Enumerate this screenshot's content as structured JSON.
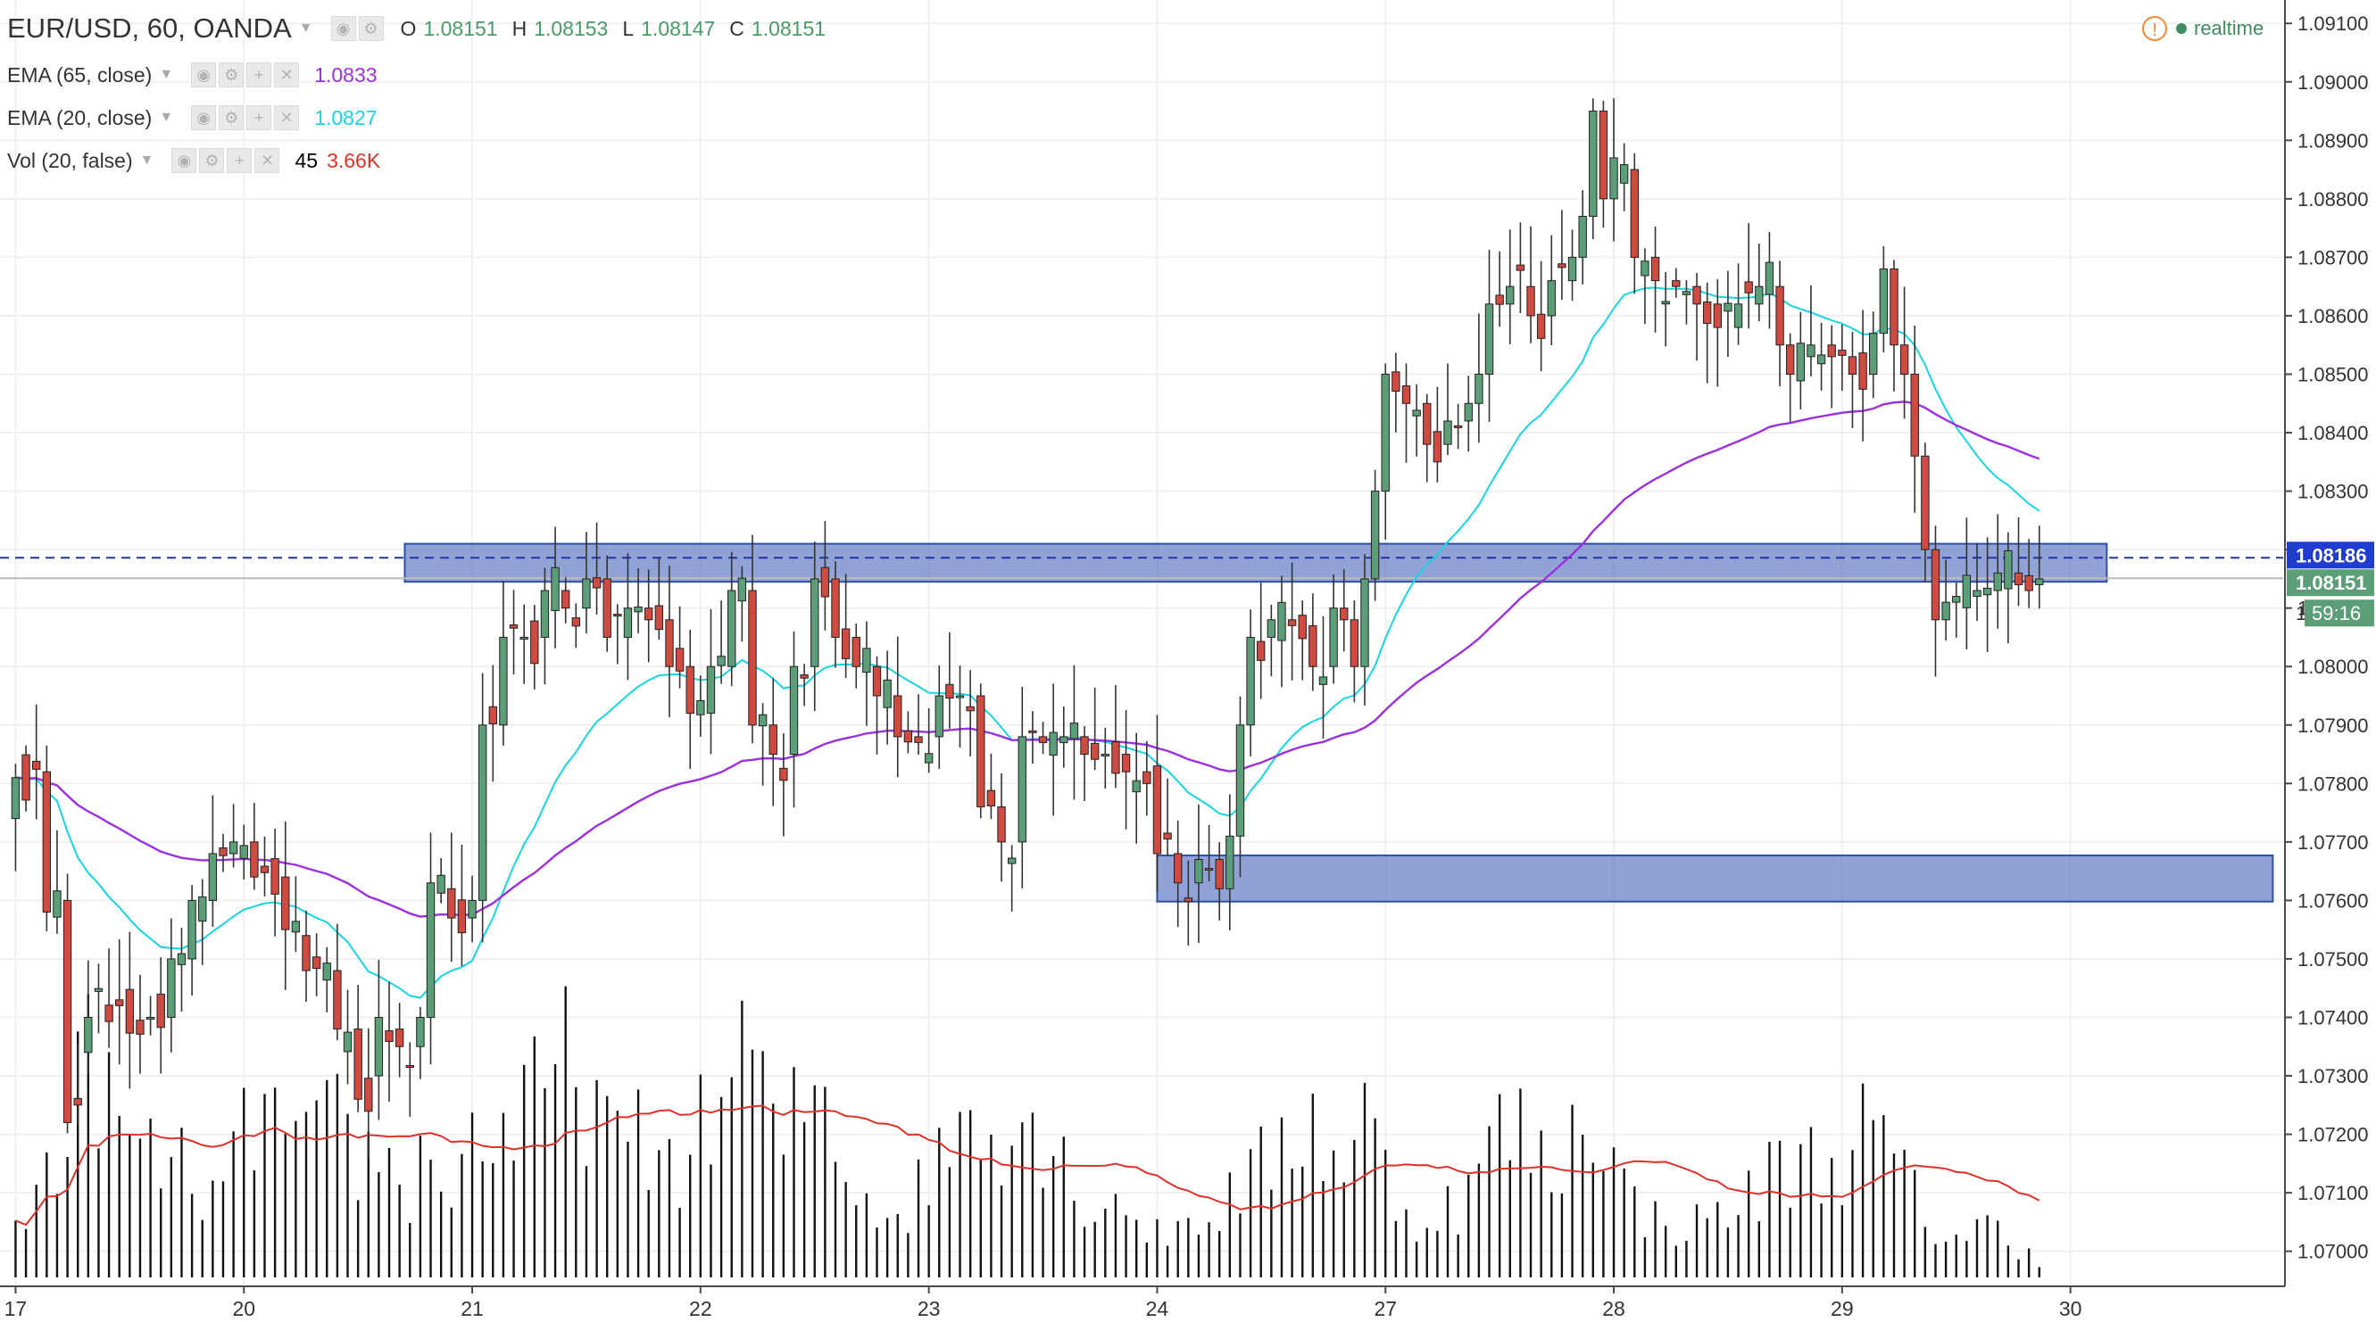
{
  "header": {
    "symbol": "EUR/USD, 60, OANDA",
    "open_label": "O",
    "open": "1.08151",
    "high_label": "H",
    "high": "1.08153",
    "low_label": "L",
    "low": "1.08147",
    "close_label": "C",
    "close": "1.08151",
    "realtime": "realtime"
  },
  "indicators": [
    {
      "name": "EMA (65, close)",
      "value": "1.0833",
      "color": "#9b30e0"
    },
    {
      "name": "EMA (20, close)",
      "value": "1.0827",
      "color": "#18d4e0"
    },
    {
      "name": "Vol (20, false)",
      "value": "45",
      "value2": "3.66K",
      "color": "#e0302a"
    }
  ],
  "icons": [
    "eye-icon",
    "gear-icon",
    "plus-icon",
    "close-icon",
    "warning-icon"
  ],
  "colors": {
    "up": "#5b9e78",
    "down": "#cf4a41",
    "ema65": "#9b30e0",
    "ema20": "#18d4e0",
    "vol_ma": "#e0302a",
    "zone": "#5470c0"
  },
  "price_labels": {
    "level": "1.08186",
    "last": "1.08151",
    "countdown": "59:16",
    "partial": "1."
  },
  "chart_data": {
    "type": "candlestick",
    "timeframe": "60",
    "y_ticks": [
      "1.09100",
      "1.09000",
      "1.08900",
      "1.08800",
      "1.08700",
      "1.08600",
      "1.08500",
      "1.08400",
      "1.08300",
      "1.08200",
      "1.08100",
      "1.08000",
      "1.07900",
      "1.07800",
      "1.07700",
      "1.07600",
      "1.07500",
      "1.07400",
      "1.07300",
      "1.07200",
      "1.07100",
      "1.07000"
    ],
    "y_range": [
      1.0694,
      1.0914
    ],
    "x_ticks": [
      {
        "label": "17",
        "index": 0
      },
      {
        "label": "20",
        "index": 22
      },
      {
        "label": "21",
        "index": 44
      },
      {
        "label": "22",
        "index": 66
      },
      {
        "label": "23",
        "index": 88
      },
      {
        "label": "24",
        "index": 110
      },
      {
        "label": "27",
        "index": 132
      },
      {
        "label": "28",
        "index": 154
      },
      {
        "label": "29",
        "index": 176
      },
      {
        "label": "30",
        "index": 198
      }
    ],
    "x_index_range": [
      -1.5,
      218.5
    ],
    "anchors": [
      [
        0,
        1.0774,
        1.0781
      ],
      [
        3,
        1.0782,
        1.0758
      ],
      [
        5,
        1.076,
        1.0722
      ],
      [
        7,
        1.0734,
        1.074
      ],
      [
        10,
        1.0743,
        1.0742
      ],
      [
        13,
        1.074,
        1.074
      ],
      [
        15,
        1.074,
        1.075
      ],
      [
        17,
        1.075,
        1.076
      ],
      [
        19,
        1.076,
        1.0768
      ],
      [
        21,
        1.0768,
        1.077
      ],
      [
        23,
        1.077,
        1.0764
      ],
      [
        26,
        1.0764,
        1.0755
      ],
      [
        28,
        1.0754,
        1.0748
      ],
      [
        31,
        1.0748,
        1.0738
      ],
      [
        33,
        1.0738,
        1.0726
      ],
      [
        35,
        1.073,
        1.074
      ],
      [
        37,
        1.0738,
        1.0735
      ],
      [
        39,
        1.0735,
        1.074
      ],
      [
        40,
        1.074,
        1.0763
      ],
      [
        42,
        1.0762,
        1.0757
      ],
      [
        44,
        1.0757,
        1.076
      ],
      [
        45,
        1.076,
        1.079
      ],
      [
        47,
        1.079,
        1.0805
      ],
      [
        49,
        1.0805,
        1.0805
      ],
      [
        51,
        1.0805,
        1.0813
      ],
      [
        53,
        1.0813,
        1.081
      ],
      [
        55,
        1.081,
        1.0815
      ],
      [
        57,
        1.0815,
        1.0805
      ],
      [
        59,
        1.0805,
        1.081
      ],
      [
        61,
        1.081,
        1.0808
      ],
      [
        63,
        1.0808,
        1.08
      ],
      [
        65,
        1.08,
        1.0792
      ],
      [
        67,
        1.0792,
        1.08
      ],
      [
        69,
        1.08,
        1.0813
      ],
      [
        71,
        1.0813,
        1.079
      ],
      [
        73,
        1.079,
        1.0785
      ],
      [
        75,
        1.0785,
        1.08
      ],
      [
        77,
        1.08,
        1.0815
      ],
      [
        79,
        1.0815,
        1.0805
      ],
      [
        81,
        1.0805,
        1.08
      ],
      [
        83,
        1.08,
        1.0795
      ],
      [
        85,
        1.0795,
        1.0788
      ],
      [
        87,
        1.0788,
        1.0787
      ],
      [
        89,
        1.0788,
        1.0795
      ],
      [
        91,
        1.0795,
        1.0795
      ],
      [
        93,
        1.0795,
        1.0776
      ],
      [
        95,
        1.0776,
        1.077
      ],
      [
        97,
        1.077,
        1.0788
      ],
      [
        99,
        1.0788,
        1.0787
      ],
      [
        101,
        1.0787,
        1.0788
      ],
      [
        103,
        1.0788,
        1.0785
      ],
      [
        105,
        1.0785,
        1.0785
      ],
      [
        107,
        1.0785,
        1.0782
      ],
      [
        109,
        1.0782,
        1.078
      ],
      [
        110,
        1.0783,
        1.0768
      ],
      [
        112,
        1.0768,
        1.0763
      ],
      [
        114,
        1.0763,
        1.0767
      ],
      [
        116,
        1.0767,
        1.0762
      ],
      [
        117,
        1.0762,
        1.0771
      ],
      [
        118,
        1.0771,
        1.079
      ],
      [
        119,
        1.079,
        1.0805
      ],
      [
        121,
        1.0805,
        1.0808
      ],
      [
        123,
        1.0808,
        1.0807
      ],
      [
        125,
        1.0807,
        1.08
      ],
      [
        127,
        1.08,
        1.081
      ],
      [
        128,
        1.081,
        1.0808
      ],
      [
        129,
        1.0808,
        1.08
      ],
      [
        130,
        1.08,
        1.0815
      ],
      [
        131,
        1.0815,
        1.083
      ],
      [
        132,
        1.083,
        1.085
      ],
      [
        134,
        1.0848,
        1.0845
      ],
      [
        136,
        1.0845,
        1.0838
      ],
      [
        138,
        1.0838,
        1.0842
      ],
      [
        140,
        1.0842,
        1.0845
      ],
      [
        141,
        1.0845,
        1.085
      ],
      [
        142,
        1.085,
        1.0862
      ],
      [
        144,
        1.0862,
        1.0865
      ],
      [
        146,
        1.0865,
        1.086
      ],
      [
        148,
        1.086,
        1.0866
      ],
      [
        150,
        1.0866,
        1.087
      ],
      [
        151,
        1.087,
        1.0877
      ],
      [
        152,
        1.0877,
        1.0895
      ],
      [
        153,
        1.0895,
        1.088
      ],
      [
        154,
        1.088,
        1.0887
      ],
      [
        156,
        1.0885,
        1.087
      ],
      [
        158,
        1.087,
        1.0866
      ],
      [
        160,
        1.0866,
        1.0865
      ],
      [
        162,
        1.0865,
        1.0862
      ],
      [
        164,
        1.0862,
        1.0858
      ],
      [
        166,
        1.0858,
        1.0862
      ],
      [
        168,
        1.0862,
        1.0865
      ],
      [
        170,
        1.0865,
        1.0855
      ],
      [
        171,
        1.0855,
        1.085
      ],
      [
        173,
        1.0853,
        1.0855
      ],
      [
        175,
        1.0855,
        1.0853
      ],
      [
        177,
        1.0853,
        1.085
      ],
      [
        179,
        1.085,
        1.0857
      ],
      [
        180,
        1.0857,
        1.0868
      ],
      [
        181,
        1.0868,
        1.0855
      ],
      [
        182,
        1.0855,
        1.085
      ],
      [
        183,
        1.085,
        1.0836
      ],
      [
        184,
        1.0836,
        1.082
      ],
      [
        185,
        1.082,
        1.0808
      ],
      [
        186,
        1.0808,
        1.0811
      ],
      [
        187,
        1.0811,
        1.0812
      ],
      [
        189,
        1.0812,
        1.0813
      ],
      [
        191,
        1.0813,
        1.0816
      ],
      [
        193,
        1.0816,
        1.0814
      ],
      [
        195,
        1.0814,
        1.0815
      ]
    ],
    "volume_anchors": [
      [
        0,
        14
      ],
      [
        5,
        52
      ],
      [
        8,
        78
      ],
      [
        10,
        45
      ],
      [
        15,
        38
      ],
      [
        20,
        25
      ],
      [
        23,
        58
      ],
      [
        26,
        48
      ],
      [
        28,
        40
      ],
      [
        31,
        52
      ],
      [
        33,
        40
      ],
      [
        35,
        42
      ],
      [
        38,
        30
      ],
      [
        40,
        46
      ],
      [
        42,
        28
      ],
      [
        44,
        48
      ],
      [
        46,
        52
      ],
      [
        48,
        46
      ],
      [
        50,
        58
      ],
      [
        52,
        66
      ],
      [
        54,
        74
      ],
      [
        56,
        62
      ],
      [
        58,
        40
      ],
      [
        60,
        46
      ],
      [
        62,
        40
      ],
      [
        65,
        44
      ],
      [
        67,
        52
      ],
      [
        69,
        68
      ],
      [
        71,
        80
      ],
      [
        73,
        44
      ],
      [
        75,
        52
      ],
      [
        77,
        66
      ],
      [
        79,
        54
      ],
      [
        81,
        30
      ],
      [
        83,
        26
      ],
      [
        85,
        20
      ],
      [
        88,
        34
      ],
      [
        90,
        48
      ],
      [
        92,
        56
      ],
      [
        94,
        64
      ],
      [
        96,
        48
      ],
      [
        98,
        58
      ],
      [
        100,
        46
      ],
      [
        102,
        30
      ],
      [
        104,
        26
      ],
      [
        106,
        28
      ],
      [
        108,
        20
      ],
      [
        110,
        14
      ],
      [
        112,
        18
      ],
      [
        114,
        20
      ],
      [
        116,
        24
      ],
      [
        118,
        30
      ],
      [
        120,
        36
      ],
      [
        122,
        44
      ],
      [
        124,
        56
      ],
      [
        126,
        48
      ],
      [
        128,
        40
      ],
      [
        130,
        56
      ],
      [
        132,
        34
      ],
      [
        134,
        22
      ],
      [
        136,
        20
      ],
      [
        138,
        24
      ],
      [
        140,
        28
      ],
      [
        142,
        44
      ],
      [
        144,
        54
      ],
      [
        146,
        42
      ],
      [
        148,
        36
      ],
      [
        150,
        48
      ],
      [
        152,
        66
      ],
      [
        154,
        38
      ],
      [
        156,
        24
      ],
      [
        158,
        20
      ],
      [
        160,
        18
      ],
      [
        162,
        18
      ],
      [
        164,
        22
      ],
      [
        166,
        24
      ],
      [
        168,
        30
      ],
      [
        170,
        38
      ],
      [
        172,
        42
      ],
      [
        174,
        36
      ],
      [
        176,
        44
      ],
      [
        178,
        48
      ],
      [
        180,
        44
      ],
      [
        182,
        34
      ],
      [
        184,
        18
      ],
      [
        186,
        16
      ],
      [
        188,
        14
      ],
      [
        190,
        18
      ],
      [
        192,
        12
      ],
      [
        194,
        10
      ],
      [
        195,
        6
      ]
    ],
    "volume_max": 100,
    "zones": [
      {
        "i0": 37.5,
        "i1": 201.5,
        "lo": 1.08145,
        "hi": 1.0821
      },
      {
        "i0": 110,
        "i1": 217.5,
        "lo": 1.07598,
        "hi": 1.07677
      }
    ],
    "horizontal_levels": [
      {
        "price": 1.08186,
        "style": "dashed"
      },
      {
        "price": 1.08151,
        "style": "solid"
      }
    ]
  }
}
